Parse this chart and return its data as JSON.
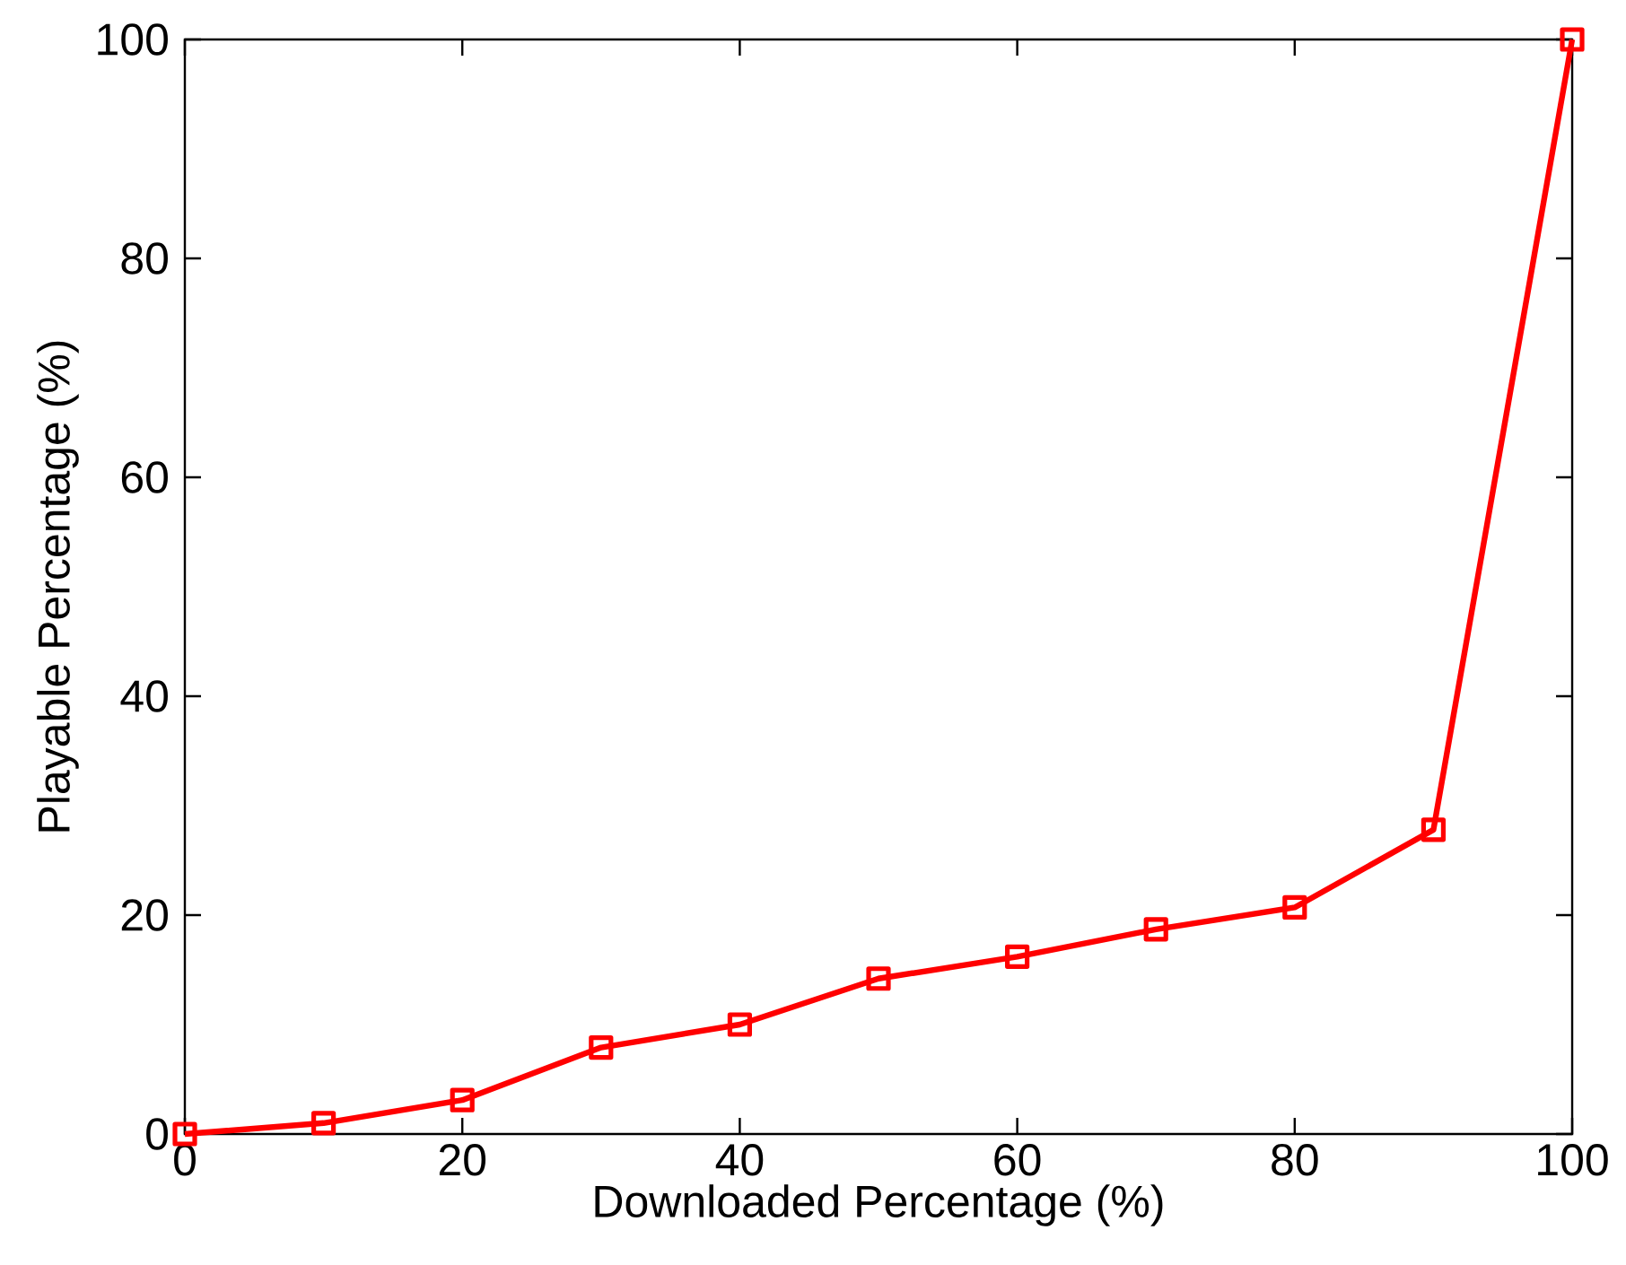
{
  "chart_data": {
    "type": "line",
    "xlabel": "Downloaded Percentage (%)",
    "ylabel": "Playable Percentage (%)",
    "x": [
      0,
      10,
      20,
      30,
      40,
      50,
      60,
      70,
      80,
      90,
      100
    ],
    "series": [
      {
        "color": "#ff0000",
        "values": [
          0,
          1.0,
          3.1,
          7.9,
          10.0,
          14.2,
          16.2,
          18.7,
          20.7,
          27.8,
          100
        ]
      }
    ],
    "xlim": [
      0,
      100
    ],
    "ylim": [
      0,
      100
    ],
    "xticks": [
      0,
      20,
      40,
      60,
      80,
      100
    ],
    "yticks": [
      0,
      20,
      40,
      60,
      80,
      100
    ],
    "grid": false,
    "marker": "square",
    "line_style": "solid"
  }
}
